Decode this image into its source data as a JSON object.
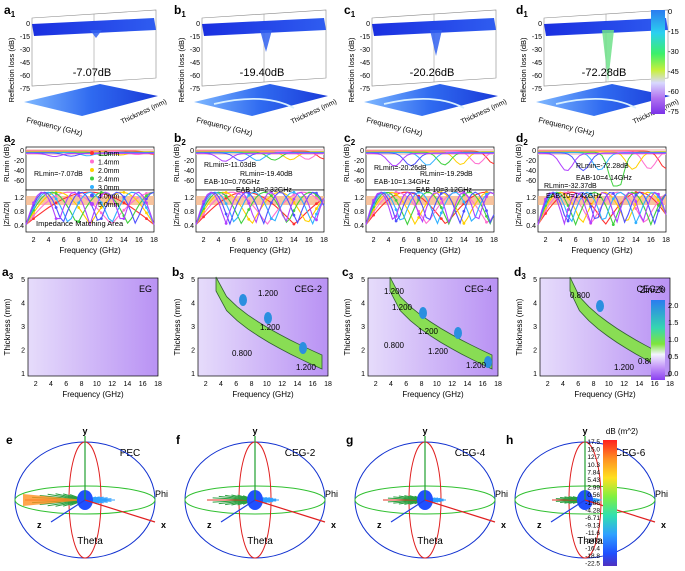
{
  "figure": {
    "row1": {
      "panel_labels": [
        "a",
        "b",
        "c",
        "d"
      ],
      "subscript": "1",
      "zlabel": "Reflection loss (dB)",
      "xlabel": "Frequency (GHz)",
      "ylabel": "Thickness (mm)",
      "ticks_z": [
        "0",
        "-15",
        "-30",
        "-45",
        "-60",
        "-75"
      ],
      "annotations": [
        "-7.07dB",
        "-19.40dB",
        "-20.26dB",
        "-72.28dB"
      ],
      "colorbar_ticks": [
        "0",
        "-15",
        "-30",
        "-45",
        "-60",
        "-75"
      ]
    },
    "row2": {
      "panel_labels": [
        "a",
        "b",
        "c",
        "d"
      ],
      "subscript": "2",
      "ylabel_top": "RLmin (dB)",
      "ylabel_bottom": "|Zin/Z0|",
      "xlabel": "Frequency (GHz)",
      "ticks_top": [
        "0",
        "-20",
        "-40",
        "-60"
      ],
      "ticks_bottom": [
        "1.2",
        "0.8",
        "0.4"
      ],
      "xticks": [
        "2",
        "4",
        "6",
        "8",
        "10",
        "12",
        "14",
        "16",
        "18"
      ],
      "legend": [
        "1.0mm",
        "1.4mm",
        "2.0mm",
        "2.4mm",
        "3.0mm",
        "4.0mm",
        "5.0mm"
      ],
      "legend_colors": [
        "#ff3030",
        "#ff6fd0",
        "#ffd000",
        "#3fd03f",
        "#30b0ff",
        "#5050ff",
        "#b040ff"
      ],
      "impedance_label": "Impedance Matching Area",
      "notes": [
        [
          "RLmin=-7.07dB"
        ],
        [
          "RLmin=-11.03dB",
          "RLmin=-19.40dB",
          "EAB-10=0.76GHz",
          "EAB-10=2.32GHz"
        ],
        [
          "RLmin=-20.26dB",
          "RLmin=-19.29dB",
          "EAB-10=1.34GHz",
          "EAB-10=3.12GHz"
        ],
        [
          "RLmin=-72.28dB",
          "EAB-10=4.14GHz",
          "RLmin=-32.37dB",
          "EAB-10=1.42GHz"
        ]
      ]
    },
    "row3": {
      "panel_labels": [
        "a",
        "b",
        "c",
        "d"
      ],
      "subscript": "3",
      "names": [
        "EG",
        "CEG-2",
        "CEG-4",
        "CEG-6"
      ],
      "xlabel": "Frequency (GHz)",
      "ylabel": "Thickness (mm)",
      "xticks": [
        "2",
        "4",
        "6",
        "8",
        "10",
        "12",
        "14",
        "16",
        "18"
      ],
      "yticks": [
        "5",
        "4",
        "3",
        "2",
        "1"
      ],
      "contours": [
        [],
        [
          "1.200",
          "0.800",
          "1.200",
          "1.200"
        ],
        [
          "1.200",
          "1.200",
          "0.800",
          "1.200",
          "1.200",
          "1.200"
        ],
        [
          "0.800",
          "1.200",
          "0.800"
        ]
      ],
      "colorbar_title": "Zin/Z0",
      "colorbar_ticks": [
        "2.0",
        "1.5",
        "1.0",
        "0.5",
        "0.0"
      ]
    },
    "row4": {
      "panel_labels": [
        "e",
        "f",
        "g",
        "h"
      ],
      "names": [
        "PEC",
        "CEG-2",
        "CEG-4",
        "CEG-6"
      ],
      "axis_labels": [
        "y",
        "x",
        "z",
        "Phi",
        "Theta"
      ],
      "colorbar_title": "dB (m^2)",
      "colorbar_ticks": [
        "17.5",
        "15.0",
        "12.7",
        "10.3",
        "7.84",
        "5.43",
        "2.99",
        "0.56",
        "-1.86",
        "-4.28",
        "-6.71",
        "-9.13",
        "-11.6",
        "-14.0",
        "-16.4",
        "-18.8",
        "-22.5"
      ]
    }
  },
  "chart_data": [
    {
      "type": "surface3d",
      "panel": "a1",
      "title": "EG",
      "zlabel": "Reflection loss (dB)",
      "min_RL_dB": -7.07,
      "zlim": [
        -75,
        0
      ]
    },
    {
      "type": "surface3d",
      "panel": "b1",
      "title": "CEG-2",
      "zlabel": "Reflection loss (dB)",
      "min_RL_dB": -19.4,
      "zlim": [
        -75,
        0
      ]
    },
    {
      "type": "surface3d",
      "panel": "c1",
      "title": "CEG-4",
      "zlabel": "Reflection loss (dB)",
      "min_RL_dB": -20.26,
      "zlim": [
        -75,
        0
      ]
    },
    {
      "type": "surface3d",
      "panel": "d1",
      "title": "CEG-6",
      "zlabel": "Reflection loss (dB)",
      "min_RL_dB": -72.28,
      "zlim": [
        -75,
        0
      ]
    },
    {
      "type": "line",
      "panel": "a2-d2",
      "xlabel": "Frequency (GHz)",
      "xlim": [
        1,
        18
      ],
      "series": [
        "1.0mm",
        "1.4mm",
        "2.0mm",
        "2.4mm",
        "3.0mm",
        "4.0mm",
        "5.0mm"
      ],
      "thickness_mm": [
        1.0,
        1.4,
        2.0,
        2.4,
        3.0,
        4.0,
        5.0
      ],
      "impedance_match_band": [
        0.8,
        1.2
      ]
    },
    {
      "type": "heatmap",
      "panel": "a3-d3",
      "xlabel": "Frequency (GHz)",
      "ylabel": "Thickness (mm)",
      "xlim": [
        1,
        18
      ],
      "ylim": [
        1,
        5
      ],
      "zlabel": "Zin/Z0",
      "zlim": [
        0,
        2.2
      ],
      "contour_levels": [
        0.8,
        1.2
      ]
    },
    {
      "type": "rcs_3d",
      "panel": "e-h",
      "samples": [
        "PEC",
        "CEG-2",
        "CEG-4",
        "CEG-6"
      ],
      "clim_dBm2": [
        -22.5,
        17.5
      ]
    }
  ]
}
